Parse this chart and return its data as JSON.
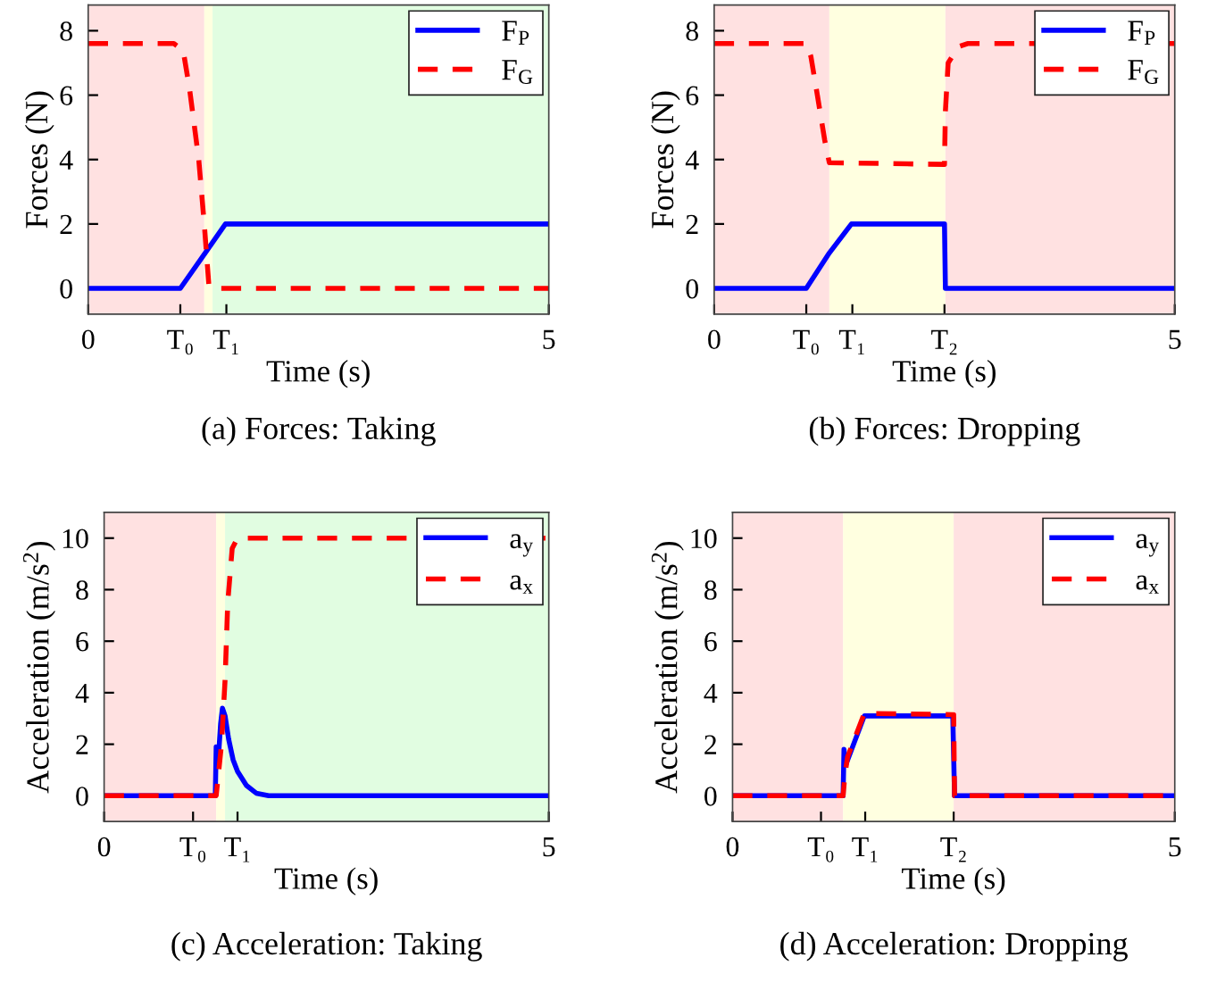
{
  "chart_data": [
    {
      "type": "line",
      "title": "(a) Forces: Taking",
      "xlabel": "Time (s)",
      "ylabel": "Forces (N)",
      "xlim": [
        0,
        5
      ],
      "ylim": [
        -0.8,
        8.8
      ],
      "xticks": [
        0,
        {
          "value": 1.0,
          "label": "T₀"
        },
        {
          "value": 1.5,
          "label": "T₁"
        },
        5
      ],
      "yticks": [
        0,
        2,
        4,
        6,
        8
      ],
      "legend": "top right",
      "grid": false,
      "bands": [
        {
          "axis": "x",
          "from": 0,
          "to": 1.26,
          "color": "#ffe1e1"
        },
        {
          "axis": "x",
          "from": 1.26,
          "to": 1.35,
          "color": "#ffffe0"
        },
        {
          "axis": "x",
          "from": 1.35,
          "to": 5,
          "color": "#e1fde1"
        }
      ],
      "series": [
        {
          "name": "F$_{P}$",
          "color": "#0000ff",
          "line_style": "solid",
          "x": [
            0,
            1.0,
            1.27,
            1.49,
            5
          ],
          "values": [
            0,
            0,
            1.1,
            2,
            2
          ]
        },
        {
          "name": "F$_{G}$",
          "color": "#ff0000",
          "line_style": "dashed",
          "x": [
            0,
            0.93,
            1.03,
            1.1,
            1.2,
            1.26,
            1.31,
            1.35,
            5
          ],
          "values": [
            7.6,
            7.6,
            7.4,
            6.2,
            4.0,
            2.0,
            0.1,
            0,
            0
          ]
        }
      ]
    },
    {
      "type": "line",
      "title": "(b) Forces: Dropping",
      "xlabel": "Time (s)",
      "ylabel": "Forces (N)",
      "xlim": [
        0,
        5
      ],
      "ylim": [
        -0.8,
        8.8
      ],
      "xticks": [
        0,
        {
          "value": 1.0,
          "label": "T₀"
        },
        {
          "value": 1.5,
          "label": "T₁"
        },
        {
          "value": 2.5,
          "label": "T₂"
        },
        5
      ],
      "yticks": [
        0,
        2,
        4,
        6,
        8
      ],
      "legend": "top right",
      "grid": false,
      "bands": [
        {
          "axis": "x",
          "from": 0,
          "to": 1.25,
          "color": "#ffe1e1"
        },
        {
          "axis": "x",
          "from": 1.25,
          "to": 2.51,
          "color": "#ffffe0"
        },
        {
          "axis": "x",
          "from": 2.51,
          "to": 5,
          "color": "#ffe1e1"
        }
      ],
      "series": [
        {
          "name": "F$_{P}$",
          "color": "#0000ff",
          "line_style": "solid",
          "x": [
            0,
            1.0,
            1.25,
            1.49,
            2.5,
            2.51,
            5
          ],
          "values": [
            0,
            0,
            1.1,
            2,
            2,
            0,
            0
          ]
        },
        {
          "name": "F$_{G}$",
          "color": "#ff0000",
          "line_style": "dashed",
          "x": [
            0,
            1.0,
            1.05,
            1.12,
            1.2,
            1.25,
            2.5,
            2.51,
            2.54,
            2.65,
            2.75,
            5
          ],
          "values": [
            7.6,
            7.6,
            7.2,
            6.0,
            4.6,
            3.9,
            3.85,
            5.5,
            7.0,
            7.5,
            7.6,
            7.6
          ]
        }
      ]
    },
    {
      "type": "line",
      "title": "(c) Acceleration: Taking",
      "xlabel": "Time (s)",
      "ylabel": "Acceleration (m/s$^{2}$)",
      "xlim": [
        0,
        5
      ],
      "ylim": [
        -1,
        11
      ],
      "xticks": [
        0,
        {
          "value": 1.0,
          "label": "T₀"
        },
        {
          "value": 1.5,
          "label": "T₁"
        },
        5
      ],
      "yticks": [
        0,
        2,
        4,
        6,
        8,
        10
      ],
      "legend": "top right",
      "grid": false,
      "bands": [
        {
          "axis": "x",
          "from": 0,
          "to": 1.26,
          "color": "#ffe1e1"
        },
        {
          "axis": "x",
          "from": 1.26,
          "to": 1.36,
          "color": "#ffffe0"
        },
        {
          "axis": "x",
          "from": 1.36,
          "to": 5,
          "color": "#e1fde1"
        }
      ],
      "series": [
        {
          "name": "a$_{y}$",
          "color": "#0000ff",
          "line_style": "solid",
          "x": [
            0,
            1.25,
            1.26,
            1.28,
            1.31,
            1.33,
            1.36,
            1.4,
            1.45,
            1.5,
            1.6,
            1.71,
            1.85,
            5
          ],
          "values": [
            0,
            0,
            1.9,
            1.2,
            2.8,
            3.4,
            3.1,
            2.2,
            1.4,
            0.95,
            0.4,
            0.1,
            0,
            0
          ]
        },
        {
          "name": "a$_{x}$",
          "color": "#ff0000",
          "line_style": "dashed",
          "x": [
            0,
            1.26,
            1.32,
            1.36,
            1.39,
            1.44,
            1.5,
            5
          ],
          "values": [
            0,
            0,
            2.0,
            4.5,
            7.5,
            9.6,
            10,
            10
          ]
        }
      ]
    },
    {
      "type": "line",
      "title": "(d) Acceleration: Dropping",
      "xlabel": "Time (s)",
      "ylabel": "Acceleration (m/s$^{2}$)",
      "xlim": [
        0,
        5
      ],
      "ylim": [
        -1,
        11
      ],
      "xticks": [
        0,
        {
          "value": 1.0,
          "label": "T₀"
        },
        {
          "value": 1.5,
          "label": "T₁"
        },
        {
          "value": 2.5,
          "label": "T₂"
        },
        5
      ],
      "yticks": [
        0,
        2,
        4,
        6,
        8,
        10
      ],
      "legend": "top right",
      "grid": false,
      "bands": [
        {
          "axis": "x",
          "from": 0,
          "to": 1.25,
          "color": "#ffe1e1"
        },
        {
          "axis": "x",
          "from": 1.25,
          "to": 2.5,
          "color": "#ffffe0"
        },
        {
          "axis": "x",
          "from": 2.5,
          "to": 5,
          "color": "#ffe1e1"
        }
      ],
      "series": [
        {
          "name": "a$_{y}$",
          "color": "#0000ff",
          "line_style": "solid",
          "x": [
            0,
            1.25,
            1.26,
            1.28,
            1.49,
            2.49,
            2.51,
            5
          ],
          "values": [
            0,
            0,
            1.8,
            1.2,
            3.1,
            3.1,
            0,
            0
          ]
        },
        {
          "name": "a$_{x}$",
          "color": "#ff0000",
          "line_style": "dashed",
          "x": [
            0,
            1.25,
            1.27,
            1.3,
            1.49,
            2.5,
            2.51,
            5
          ],
          "values": [
            0,
            0,
            0.8,
            1.5,
            3.2,
            3.15,
            0,
            0
          ]
        }
      ]
    }
  ]
}
